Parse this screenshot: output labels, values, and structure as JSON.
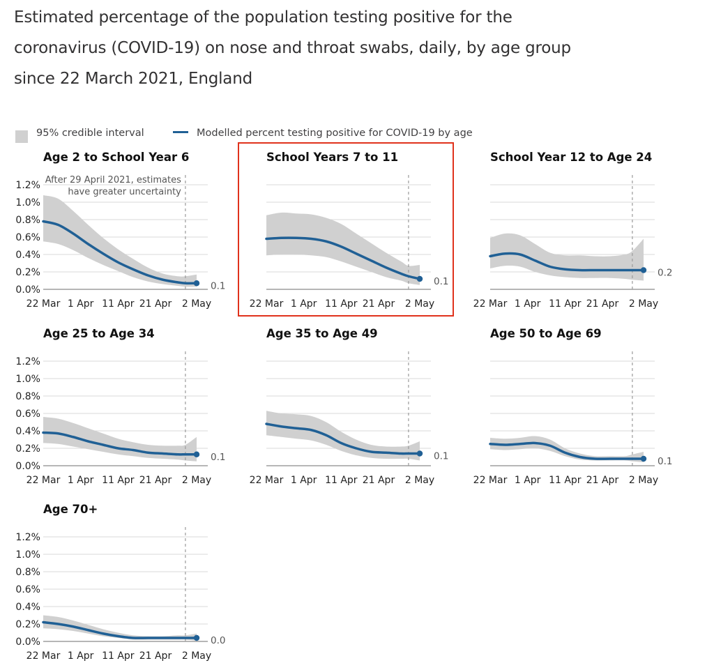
{
  "title_lines": [
    "Estimated percentage of the population testing positive for the",
    "coronavirus (COVID-19) on nose and throat swabs, daily, by age group",
    "since 22 March 2021, England"
  ],
  "legend": {
    "ci_label": "95% credible interval",
    "model_label": "Modelled percent testing positive for COVID-19 by age"
  },
  "annotation": [
    "After 29 April 2021, estimates",
    "have greater uncertainty"
  ],
  "colors": {
    "line": "#206095",
    "band": "#d0d0d0",
    "grid": "#d9d9d9",
    "highlight": "#e0321c"
  },
  "highlighted_panel": "School Years 7 to 11",
  "chart_data": [
    {
      "type": "line",
      "title": "Age 2 to School Year 6",
      "x_ticks": [
        "22 Mar",
        "1 Apr",
        "11 Apr",
        "21 Apr",
        "2 May"
      ],
      "x_tick_days": [
        0,
        10,
        20,
        30,
        41
      ],
      "y_ticks": [
        "0.0%",
        "0.2%",
        "0.4%",
        "0.6%",
        "0.8%",
        "1.0%",
        "1.2%"
      ],
      "ylim": [
        0,
        1.2
      ],
      "x_days": [
        0,
        4,
        8,
        12,
        16,
        20,
        24,
        28,
        32,
        36,
        38,
        41
      ],
      "x_dates": [
        "22 Mar",
        "26 Mar",
        "30 Mar",
        "3 Apr",
        "7 Apr",
        "11 Apr",
        "15 Apr",
        "19 Apr",
        "23 Apr",
        "27 Apr",
        "29 Apr",
        "2 May"
      ],
      "estimate": [
        0.78,
        0.74,
        0.64,
        0.52,
        0.41,
        0.31,
        0.23,
        0.16,
        0.11,
        0.08,
        0.07,
        0.07
      ],
      "lower": [
        0.55,
        0.52,
        0.45,
        0.36,
        0.28,
        0.21,
        0.14,
        0.09,
        0.06,
        0.04,
        0.03,
        0.03
      ],
      "upper": [
        1.08,
        1.04,
        0.9,
        0.74,
        0.59,
        0.46,
        0.35,
        0.25,
        0.18,
        0.15,
        0.15,
        0.17
      ],
      "end_label": "0.1",
      "cutoff_day": 38
    },
    {
      "type": "line",
      "title": "School Years 7 to 11",
      "x_ticks": [
        "22 Mar",
        "1 Apr",
        "11 Apr",
        "21 Apr",
        "2 May"
      ],
      "x_tick_days": [
        0,
        10,
        20,
        30,
        41
      ],
      "y_ticks": [
        "0.0%",
        "0.2%",
        "0.4%",
        "0.6%",
        "0.8%",
        "1.0%",
        "1.2%"
      ],
      "ylim": [
        0,
        1.2
      ],
      "x_days": [
        0,
        4,
        8,
        12,
        16,
        20,
        24,
        28,
        32,
        36,
        38,
        41
      ],
      "x_dates": [
        "22 Mar",
        "26 Mar",
        "30 Mar",
        "3 Apr",
        "7 Apr",
        "11 Apr",
        "15 Apr",
        "19 Apr",
        "23 Apr",
        "27 Apr",
        "29 Apr",
        "2 May"
      ],
      "estimate": [
        0.58,
        0.59,
        0.59,
        0.58,
        0.55,
        0.49,
        0.41,
        0.33,
        0.25,
        0.18,
        0.15,
        0.12
      ],
      "lower": [
        0.39,
        0.4,
        0.4,
        0.39,
        0.37,
        0.32,
        0.26,
        0.2,
        0.14,
        0.1,
        0.07,
        0.05
      ],
      "upper": [
        0.85,
        0.88,
        0.87,
        0.86,
        0.82,
        0.75,
        0.64,
        0.53,
        0.42,
        0.32,
        0.27,
        0.28
      ],
      "end_label": "0.1",
      "cutoff_day": 38
    },
    {
      "type": "line",
      "title": "School Year 12 to Age 24",
      "x_ticks": [
        "22 Mar",
        "1 Apr",
        "11 Apr",
        "21 Apr",
        "2 May"
      ],
      "x_tick_days": [
        0,
        10,
        20,
        30,
        41
      ],
      "y_ticks": [
        "0.0%",
        "0.2%",
        "0.4%",
        "0.6%",
        "0.8%",
        "1.0%",
        "1.2%"
      ],
      "ylim": [
        0,
        1.2
      ],
      "x_days": [
        0,
        4,
        8,
        12,
        16,
        20,
        24,
        28,
        32,
        36,
        38,
        41
      ],
      "x_dates": [
        "22 Mar",
        "26 Mar",
        "30 Mar",
        "3 Apr",
        "7 Apr",
        "11 Apr",
        "15 Apr",
        "19 Apr",
        "23 Apr",
        "27 Apr",
        "29 Apr",
        "2 May"
      ],
      "estimate": [
        0.38,
        0.41,
        0.4,
        0.33,
        0.26,
        0.23,
        0.22,
        0.22,
        0.22,
        0.22,
        0.22,
        0.22
      ],
      "lower": [
        0.24,
        0.27,
        0.26,
        0.2,
        0.16,
        0.14,
        0.13,
        0.13,
        0.13,
        0.12,
        0.11,
        0.1
      ],
      "upper": [
        0.59,
        0.64,
        0.62,
        0.52,
        0.42,
        0.39,
        0.39,
        0.38,
        0.38,
        0.4,
        0.44,
        0.58
      ],
      "end_label": "0.2",
      "cutoff_day": 38
    },
    {
      "type": "line",
      "title": "Age 25 to Age 34",
      "x_ticks": [
        "22 Mar",
        "1 Apr",
        "11 Apr",
        "21 Apr",
        "2 May"
      ],
      "x_tick_days": [
        0,
        10,
        20,
        30,
        41
      ],
      "y_ticks": [
        "0.0%",
        "0.2%",
        "0.4%",
        "0.6%",
        "0.8%",
        "1.0%",
        "1.2%"
      ],
      "ylim": [
        0,
        1.2
      ],
      "x_days": [
        0,
        4,
        8,
        12,
        16,
        20,
        24,
        28,
        32,
        36,
        38,
        41
      ],
      "x_dates": [
        "22 Mar",
        "26 Mar",
        "30 Mar",
        "3 Apr",
        "7 Apr",
        "11 Apr",
        "15 Apr",
        "19 Apr",
        "23 Apr",
        "27 Apr",
        "29 Apr",
        "2 May"
      ],
      "estimate": [
        0.38,
        0.37,
        0.33,
        0.28,
        0.24,
        0.2,
        0.18,
        0.15,
        0.14,
        0.13,
        0.13,
        0.13
      ],
      "lower": [
        0.26,
        0.25,
        0.22,
        0.19,
        0.16,
        0.13,
        0.11,
        0.09,
        0.08,
        0.07,
        0.06,
        0.05
      ],
      "upper": [
        0.56,
        0.54,
        0.49,
        0.43,
        0.37,
        0.31,
        0.27,
        0.24,
        0.23,
        0.23,
        0.24,
        0.33
      ],
      "end_label": "0.1",
      "cutoff_day": 38
    },
    {
      "type": "line",
      "title": "Age 35 to Age 49",
      "x_ticks": [
        "22 Mar",
        "1 Apr",
        "11 Apr",
        "21 Apr",
        "2 May"
      ],
      "x_tick_days": [
        0,
        10,
        20,
        30,
        41
      ],
      "y_ticks": [
        "0.0%",
        "0.2%",
        "0.4%",
        "0.6%",
        "0.8%",
        "1.0%",
        "1.2%"
      ],
      "ylim": [
        0,
        1.2
      ],
      "x_days": [
        0,
        4,
        8,
        12,
        16,
        20,
        24,
        28,
        32,
        36,
        38,
        41
      ],
      "x_dates": [
        "22 Mar",
        "26 Mar",
        "30 Mar",
        "3 Apr",
        "7 Apr",
        "11 Apr",
        "15 Apr",
        "19 Apr",
        "23 Apr",
        "27 Apr",
        "29 Apr",
        "2 May"
      ],
      "estimate": [
        0.48,
        0.45,
        0.43,
        0.41,
        0.35,
        0.26,
        0.2,
        0.16,
        0.15,
        0.14,
        0.14,
        0.14
      ],
      "lower": [
        0.35,
        0.33,
        0.31,
        0.29,
        0.24,
        0.17,
        0.12,
        0.09,
        0.08,
        0.08,
        0.08,
        0.06
      ],
      "upper": [
        0.63,
        0.6,
        0.59,
        0.57,
        0.5,
        0.39,
        0.3,
        0.24,
        0.22,
        0.22,
        0.23,
        0.28
      ],
      "end_label": "0.1",
      "cutoff_day": 38
    },
    {
      "type": "line",
      "title": "Age 50 to Age 69",
      "x_ticks": [
        "22 Mar",
        "1 Apr",
        "11 Apr",
        "21 Apr",
        "2 May"
      ],
      "x_tick_days": [
        0,
        10,
        20,
        30,
        41
      ],
      "y_ticks": [
        "0.0%",
        "0.2%",
        "0.4%",
        "0.6%",
        "0.8%",
        "1.0%",
        "1.2%"
      ],
      "ylim": [
        0,
        1.2
      ],
      "x_days": [
        0,
        4,
        8,
        12,
        16,
        20,
        24,
        28,
        32,
        36,
        38,
        41
      ],
      "x_dates": [
        "22 Mar",
        "26 Mar",
        "30 Mar",
        "3 Apr",
        "7 Apr",
        "11 Apr",
        "15 Apr",
        "19 Apr",
        "23 Apr",
        "27 Apr",
        "29 Apr",
        "2 May"
      ],
      "estimate": [
        0.25,
        0.24,
        0.25,
        0.26,
        0.23,
        0.15,
        0.1,
        0.08,
        0.08,
        0.08,
        0.08,
        0.08
      ],
      "lower": [
        0.19,
        0.18,
        0.19,
        0.2,
        0.17,
        0.11,
        0.07,
        0.06,
        0.06,
        0.06,
        0.05,
        0.04
      ],
      "upper": [
        0.32,
        0.31,
        0.32,
        0.34,
        0.3,
        0.2,
        0.14,
        0.11,
        0.11,
        0.11,
        0.13,
        0.16
      ],
      "end_label": "0.1",
      "cutoff_day": 38
    },
    {
      "type": "line",
      "title": "Age 70+",
      "x_ticks": [
        "22 Mar",
        "1 Apr",
        "11 Apr",
        "21 Apr",
        "2 May"
      ],
      "x_tick_days": [
        0,
        10,
        20,
        30,
        41
      ],
      "y_ticks": [
        "0.0%",
        "0.2%",
        "0.4%",
        "0.6%",
        "0.8%",
        "1.0%",
        "1.2%"
      ],
      "ylim": [
        0,
        1.2
      ],
      "x_days": [
        0,
        4,
        8,
        12,
        16,
        20,
        24,
        28,
        32,
        36,
        38,
        41
      ],
      "x_dates": [
        "22 Mar",
        "26 Mar",
        "30 Mar",
        "3 Apr",
        "7 Apr",
        "11 Apr",
        "15 Apr",
        "19 Apr",
        "23 Apr",
        "27 Apr",
        "29 Apr",
        "2 May"
      ],
      "estimate": [
        0.22,
        0.2,
        0.17,
        0.13,
        0.09,
        0.06,
        0.04,
        0.04,
        0.04,
        0.04,
        0.04,
        0.04
      ],
      "lower": [
        0.15,
        0.14,
        0.12,
        0.09,
        0.06,
        0.04,
        0.02,
        0.02,
        0.02,
        0.02,
        0.02,
        0.01
      ],
      "upper": [
        0.3,
        0.28,
        0.24,
        0.19,
        0.14,
        0.1,
        0.07,
        0.06,
        0.06,
        0.07,
        0.07,
        0.09
      ],
      "end_label": "0.0",
      "cutoff_day": 38
    }
  ]
}
